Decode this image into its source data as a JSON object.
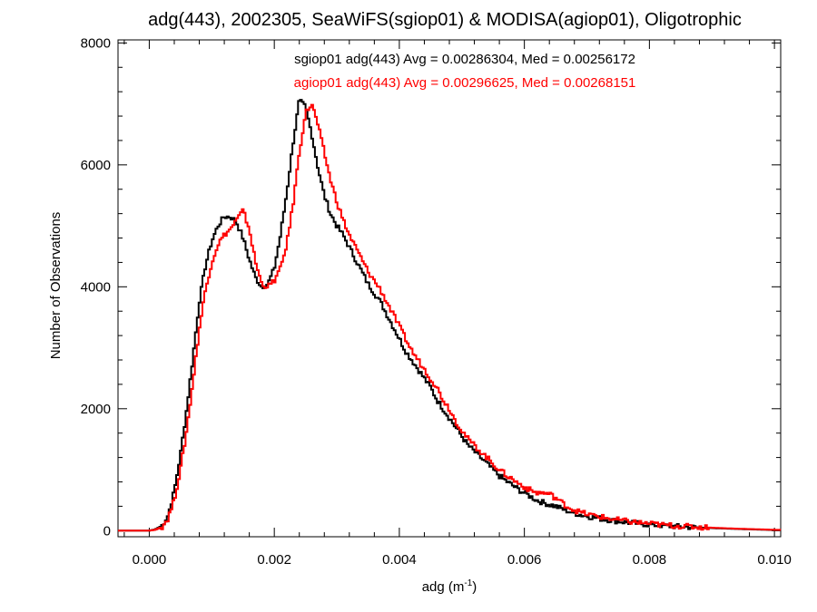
{
  "chart_data": {
    "type": "line",
    "title": "adg(443), 2002305, SeaWiFS(sgiop01) & MODISA(agiop01), Oligotrophic",
    "xlabel": "adg (m",
    "xlabel_sup": "-1",
    "xlabel_end": ")",
    "ylabel": "Number of Observations",
    "xlim": [
      -0.0005,
      0.0101
    ],
    "ylim": [
      -100,
      8050
    ],
    "x_ticks": [
      0.0,
      0.002,
      0.004,
      0.006,
      0.008,
      0.01
    ],
    "x_tick_labels": [
      "0.000",
      "0.002",
      "0.004",
      "0.006",
      "0.008",
      "0.010"
    ],
    "y_ticks": [
      0,
      2000,
      4000,
      6000,
      8000
    ],
    "y_tick_labels": [
      "0",
      "2000",
      "4000",
      "6000",
      "8000"
    ],
    "grid": false,
    "annotations": [
      {
        "text": "sgiop01 adg(443) Avg = 0.00286304, Med = 0.00256172",
        "color": "#000000"
      },
      {
        "text": "agiop01 adg(443) Avg = 0.00296625, Med = 0.00268151",
        "color": "#ff0000"
      }
    ],
    "series": [
      {
        "name": "sgiop01",
        "color": "#000000",
        "points": [
          [
            -0.0005,
            0
          ],
          [
            0.0,
            0
          ],
          [
            0.0001,
            20
          ],
          [
            0.0002,
            80
          ],
          [
            0.0003,
            250
          ],
          [
            0.0004,
            650
          ],
          [
            0.0005,
            1250
          ],
          [
            0.0006,
            2000
          ],
          [
            0.0007,
            2850
          ],
          [
            0.0008,
            3750
          ],
          [
            0.0009,
            4350
          ],
          [
            0.001,
            4750
          ],
          [
            0.0011,
            5000
          ],
          [
            0.0012,
            5150
          ],
          [
            0.0013,
            5150
          ],
          [
            0.0014,
            5050
          ],
          [
            0.0015,
            4800
          ],
          [
            0.0016,
            4450
          ],
          [
            0.0017,
            4150
          ],
          [
            0.0018,
            4000
          ],
          [
            0.0019,
            4050
          ],
          [
            0.002,
            4300
          ],
          [
            0.0021,
            4850
          ],
          [
            0.0022,
            5550
          ],
          [
            0.0023,
            6350
          ],
          [
            0.0024,
            7050
          ],
          [
            0.0025,
            6950
          ],
          [
            0.0026,
            6500
          ],
          [
            0.0027,
            5950
          ],
          [
            0.0028,
            5500
          ],
          [
            0.0029,
            5200
          ],
          [
            0.003,
            5000
          ],
          [
            0.0031,
            4850
          ],
          [
            0.0032,
            4650
          ],
          [
            0.0033,
            4450
          ],
          [
            0.0034,
            4250
          ],
          [
            0.0035,
            4050
          ],
          [
            0.0036,
            3900
          ],
          [
            0.0037,
            3750
          ],
          [
            0.0038,
            3550
          ],
          [
            0.0039,
            3350
          ],
          [
            0.004,
            3150
          ],
          [
            0.0041,
            2950
          ],
          [
            0.0042,
            2800
          ],
          [
            0.0043,
            2650
          ],
          [
            0.0044,
            2500
          ],
          [
            0.0045,
            2350
          ],
          [
            0.0046,
            2150
          ],
          [
            0.0047,
            2000
          ],
          [
            0.0048,
            1850
          ],
          [
            0.0049,
            1700
          ],
          [
            0.005,
            1550
          ],
          [
            0.0051,
            1400
          ],
          [
            0.0052,
            1300
          ],
          [
            0.0053,
            1200
          ],
          [
            0.0054,
            1100
          ],
          [
            0.0055,
            1000
          ],
          [
            0.0056,
            900
          ],
          [
            0.0057,
            820
          ],
          [
            0.0058,
            750
          ],
          [
            0.0059,
            680
          ],
          [
            0.006,
            620
          ],
          [
            0.0061,
            560
          ],
          [
            0.0062,
            500
          ],
          [
            0.0063,
            460
          ],
          [
            0.0064,
            430
          ],
          [
            0.0065,
            400
          ],
          [
            0.0066,
            360
          ],
          [
            0.0067,
            320
          ],
          [
            0.0068,
            290
          ],
          [
            0.0069,
            260
          ],
          [
            0.007,
            240
          ],
          [
            0.0072,
            200
          ],
          [
            0.0074,
            170
          ],
          [
            0.0076,
            140
          ],
          [
            0.0078,
            120
          ],
          [
            0.008,
            100
          ],
          [
            0.0082,
            85
          ],
          [
            0.0084,
            70
          ],
          [
            0.0086,
            60
          ],
          [
            0.0088,
            50
          ],
          [
            0.009,
            42
          ],
          [
            0.0092,
            35
          ],
          [
            0.0094,
            28
          ],
          [
            0.0096,
            22
          ],
          [
            0.0098,
            16
          ],
          [
            0.01,
            10
          ],
          [
            0.0101,
            8
          ]
        ]
      },
      {
        "name": "agiop01",
        "color": "#ff0000",
        "points": [
          [
            -0.0005,
            0
          ],
          [
            0.0,
            0
          ],
          [
            0.0001,
            15
          ],
          [
            0.0002,
            60
          ],
          [
            0.0003,
            200
          ],
          [
            0.0004,
            500
          ],
          [
            0.0005,
            1000
          ],
          [
            0.0006,
            1650
          ],
          [
            0.0007,
            2450
          ],
          [
            0.0008,
            3300
          ],
          [
            0.0009,
            3950
          ],
          [
            0.001,
            4400
          ],
          [
            0.0011,
            4700
          ],
          [
            0.0012,
            4850
          ],
          [
            0.0013,
            4950
          ],
          [
            0.0014,
            5100
          ],
          [
            0.0015,
            5250
          ],
          [
            0.0016,
            4950
          ],
          [
            0.0017,
            4400
          ],
          [
            0.0018,
            4050
          ],
          [
            0.0019,
            4000
          ],
          [
            0.002,
            4100
          ],
          [
            0.0021,
            4300
          ],
          [
            0.0022,
            4700
          ],
          [
            0.0023,
            5350
          ],
          [
            0.0024,
            6200
          ],
          [
            0.0025,
            6850
          ],
          [
            0.0026,
            7000
          ],
          [
            0.0027,
            6650
          ],
          [
            0.0028,
            6200
          ],
          [
            0.0029,
            5750
          ],
          [
            0.003,
            5400
          ],
          [
            0.0031,
            5100
          ],
          [
            0.0032,
            4850
          ],
          [
            0.0033,
            4650
          ],
          [
            0.0034,
            4450
          ],
          [
            0.0035,
            4250
          ],
          [
            0.0036,
            4100
          ],
          [
            0.0037,
            3950
          ],
          [
            0.0038,
            3750
          ],
          [
            0.0039,
            3550
          ],
          [
            0.004,
            3350
          ],
          [
            0.0041,
            3150
          ],
          [
            0.0042,
            2950
          ],
          [
            0.0043,
            2800
          ],
          [
            0.0044,
            2650
          ],
          [
            0.0045,
            2500
          ],
          [
            0.0046,
            2350
          ],
          [
            0.0047,
            2150
          ],
          [
            0.0048,
            2000
          ],
          [
            0.0049,
            1800
          ],
          [
            0.005,
            1650
          ],
          [
            0.0051,
            1500
          ],
          [
            0.0052,
            1400
          ],
          [
            0.0053,
            1300
          ],
          [
            0.0054,
            1200
          ],
          [
            0.0055,
            1100
          ],
          [
            0.0056,
            1000
          ],
          [
            0.0057,
            920
          ],
          [
            0.0058,
            850
          ],
          [
            0.0059,
            780
          ],
          [
            0.006,
            720
          ],
          [
            0.0061,
            660
          ],
          [
            0.0062,
            620
          ],
          [
            0.0063,
            620
          ],
          [
            0.0064,
            600
          ],
          [
            0.0065,
            540
          ],
          [
            0.0066,
            460
          ],
          [
            0.0067,
            390
          ],
          [
            0.0068,
            340
          ],
          [
            0.0069,
            300
          ],
          [
            0.007,
            270
          ],
          [
            0.0072,
            230
          ],
          [
            0.0074,
            190
          ],
          [
            0.0076,
            160
          ],
          [
            0.0078,
            135
          ],
          [
            0.008,
            115
          ],
          [
            0.0082,
            95
          ],
          [
            0.0084,
            80
          ],
          [
            0.0086,
            68
          ],
          [
            0.0088,
            58
          ],
          [
            0.009,
            48
          ],
          [
            0.0092,
            40
          ],
          [
            0.0094,
            32
          ],
          [
            0.0096,
            26
          ],
          [
            0.0098,
            20
          ],
          [
            0.01,
            14
          ],
          [
            0.0101,
            12
          ]
        ]
      }
    ]
  }
}
